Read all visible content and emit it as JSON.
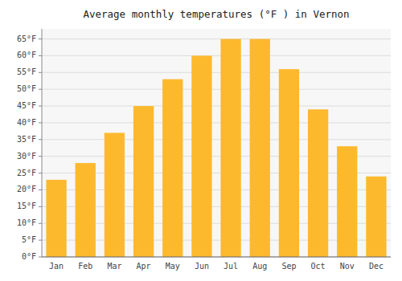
{
  "chart_data": {
    "type": "bar",
    "title": "Average monthly temperatures (°F ) in Vernon",
    "categories": [
      "Jan",
      "Feb",
      "Mar",
      "Apr",
      "May",
      "Jun",
      "Jul",
      "Aug",
      "Sep",
      "Oct",
      "Nov",
      "Dec"
    ],
    "values": [
      23,
      28,
      37,
      45,
      53,
      60,
      65,
      65,
      56,
      44,
      33,
      24
    ],
    "color": "#FDB92E",
    "ylim": [
      0,
      68
    ],
    "yticks": [
      {
        "value": 0,
        "label": "0°F"
      },
      {
        "value": 5,
        "label": "5°F"
      },
      {
        "value": 10,
        "label": "10°F"
      },
      {
        "value": 15,
        "label": "15°F"
      },
      {
        "value": 20,
        "label": "20°F"
      },
      {
        "value": 25,
        "label": "25°F"
      },
      {
        "value": 30,
        "label": "30°F"
      },
      {
        "value": 35,
        "label": "35°F"
      },
      {
        "value": 40,
        "label": "40°F"
      },
      {
        "value": 45,
        "label": "45°F"
      },
      {
        "value": 50,
        "label": "50°F"
      },
      {
        "value": 55,
        "label": "55°F"
      },
      {
        "value": 60,
        "label": "60°F"
      },
      {
        "value": 65,
        "label": "65°F"
      }
    ],
    "grid": true
  }
}
